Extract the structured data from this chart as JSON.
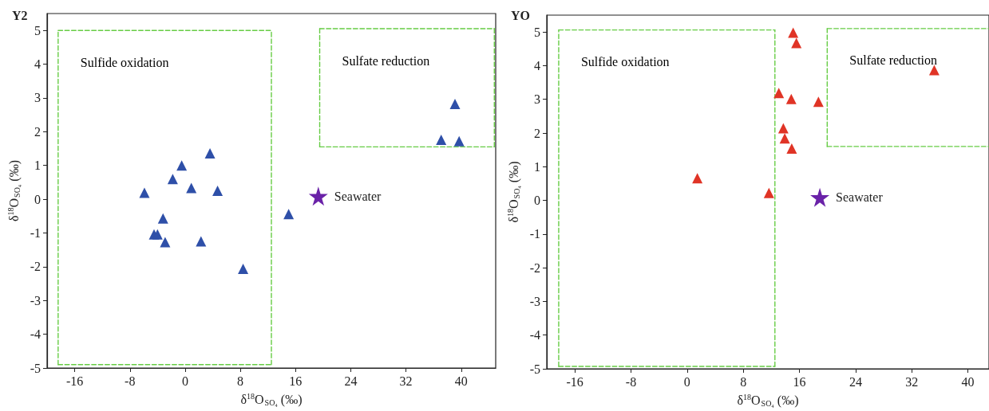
{
  "chart_data": [
    {
      "type": "scatter",
      "title": "Y2",
      "xlabel": "δ$^{18}$O$_{SO₄}$ (‰)",
      "ylabel": "δ$^{18}$O$_{SO₄}$ (‰)",
      "xlim": [
        -20,
        45
      ],
      "ylim": [
        -5,
        5.5
      ],
      "xticks": [
        -16,
        -8,
        0,
        8,
        16,
        24,
        32,
        40
      ],
      "yticks": [
        -5,
        -4,
        -3,
        -2,
        -1,
        0,
        1,
        2,
        3,
        4,
        5
      ],
      "series": [
        {
          "type": "line",
          "color": "#66cc44",
          "line_style": "dashed",
          "marker": "none",
          "x": [
            -18.4,
            12.5
          ],
          "values": [
            5.0,
            5.0
          ]
        },
        {
          "type": "line",
          "color": "#66cc44",
          "line_style": "dashed",
          "marker": "none",
          "x": [
            -18.4,
            12.5
          ],
          "values": [
            -4.9,
            -4.9
          ]
        },
        {
          "type": "line",
          "color": "#66cc44",
          "line_style": "dashed",
          "marker": "none",
          "x": [
            -18.4,
            -18.4
          ],
          "values": [
            -4.9,
            5.0
          ]
        },
        {
          "type": "line",
          "color": "#66cc44",
          "line_style": "dashed",
          "marker": "none",
          "x": [
            12.5,
            12.5
          ],
          "values": [
            -4.9,
            5.0
          ]
        },
        {
          "type": "line",
          "color": "#66cc44",
          "line_style": "dashed",
          "marker": "none",
          "x": [
            19.5,
            44.8
          ],
          "values": [
            5.05,
            5.05
          ]
        },
        {
          "type": "line",
          "color": "#66cc44",
          "line_style": "dashed",
          "marker": "none",
          "x": [
            19.5,
            44.8
          ],
          "values": [
            1.55,
            1.55
          ]
        },
        {
          "type": "line",
          "color": "#66cc44",
          "line_style": "dashed",
          "marker": "none",
          "x": [
            19.5,
            19.5
          ],
          "values": [
            1.55,
            5.05
          ]
        },
        {
          "type": "line",
          "color": "#66cc44",
          "line_style": "dashed",
          "marker": "none",
          "x": [
            44.8,
            44.8
          ],
          "values": [
            1.55,
            5.05
          ]
        },
        {
          "type": "scatter",
          "color": "#2e4fa8",
          "marker": "triangle",
          "x": [
            -5.9,
            -0.5,
            -1.8,
            0.9,
            3.6,
            4.7,
            -3.2,
            -4.5,
            -4.0,
            -2.9,
            2.3,
            8.4,
            15.0,
            37.1,
            39.1,
            39.7
          ],
          "values": [
            0.19,
            1.0,
            0.6,
            0.33,
            1.36,
            0.25,
            -0.57,
            -1.04,
            -1.04,
            -1.27,
            -1.25,
            -2.06,
            -0.44,
            1.76,
            2.82,
            1.72
          ]
        },
        {
          "type": "scatter",
          "name": "Seawater",
          "color": "#6a22a8",
          "marker": "star",
          "x": [
            19.3
          ],
          "values": [
            0.09
          ]
        }
      ],
      "annotations": [
        "Sulfide oxidation",
        "Sulfate reduction"
      ]
    },
    {
      "type": "scatter",
      "title": "YO",
      "xlabel": "δ$^{18}$O$_{SO₄}$ (‰)",
      "ylabel": "δ$^{18}$O$_{SO₄}$ (‰)",
      "xlim": [
        -20,
        43
      ],
      "ylim": [
        -5,
        5.5
      ],
      "xticks": [
        -16,
        -8,
        0,
        8,
        16,
        24,
        32,
        40
      ],
      "yticks": [
        -5,
        -4,
        -3,
        -2,
        -1,
        0,
        1,
        2,
        3,
        4,
        5
      ],
      "series": [
        {
          "type": "line",
          "color": "#66cc44",
          "line_style": "dashed",
          "marker": "none",
          "x": [
            -18.3,
            12.5
          ],
          "values": [
            5.06,
            5.06
          ]
        },
        {
          "type": "line",
          "color": "#66cc44",
          "line_style": "dashed",
          "marker": "none",
          "x": [
            -18.3,
            12.5
          ],
          "values": [
            -4.93,
            -4.93
          ]
        },
        {
          "type": "line",
          "color": "#66cc44",
          "line_style": "dashed",
          "marker": "none",
          "x": [
            -18.3,
            -18.3
          ],
          "values": [
            -4.93,
            5.06
          ]
        },
        {
          "type": "line",
          "color": "#66cc44",
          "line_style": "dashed",
          "marker": "none",
          "x": [
            12.5,
            12.5
          ],
          "values": [
            -4.93,
            5.06
          ]
        },
        {
          "type": "line",
          "color": "#66cc44",
          "line_style": "dashed",
          "marker": "none",
          "x": [
            19.95,
            43
          ],
          "values": [
            5.1,
            5.1
          ]
        },
        {
          "type": "line",
          "color": "#66cc44",
          "line_style": "dashed",
          "marker": "none",
          "x": [
            19.95,
            43
          ],
          "values": [
            1.6,
            1.6
          ]
        },
        {
          "type": "line",
          "color": "#66cc44",
          "line_style": "dashed",
          "marker": "none",
          "x": [
            19.95,
            19.95
          ],
          "values": [
            1.6,
            5.1
          ]
        },
        {
          "type": "scatter",
          "color": "#e03426",
          "marker": "triangle",
          "x": [
            1.45,
            11.65,
            15.1,
            15.56,
            13.06,
            14.83,
            18.7,
            13.7,
            13.9,
            14.9,
            35.2
          ],
          "values": [
            0.66,
            0.22,
            4.98,
            4.67,
            3.19,
            3.01,
            2.93,
            2.14,
            1.84,
            1.54,
            3.87
          ]
        },
        {
          "type": "scatter",
          "name": "Seawater",
          "color": "#6a22a8",
          "marker": "star",
          "x": [
            18.9
          ],
          "values": [
            0.09
          ]
        }
      ],
      "annotations": [
        "Sulfide oxidation",
        "Sulfate reduction"
      ]
    }
  ]
}
